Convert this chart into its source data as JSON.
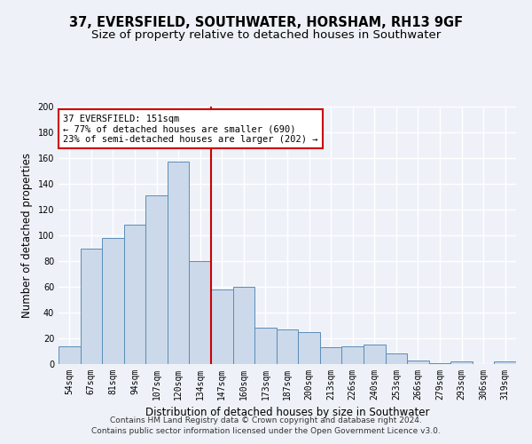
{
  "title": "37, EVERSFIELD, SOUTHWATER, HORSHAM, RH13 9GF",
  "subtitle": "Size of property relative to detached houses in Southwater",
  "xlabel": "Distribution of detached houses by size in Southwater",
  "ylabel": "Number of detached properties",
  "categories": [
    "54sqm",
    "67sqm",
    "81sqm",
    "94sqm",
    "107sqm",
    "120sqm",
    "134sqm",
    "147sqm",
    "160sqm",
    "173sqm",
    "187sqm",
    "200sqm",
    "213sqm",
    "226sqm",
    "240sqm",
    "253sqm",
    "266sqm",
    "279sqm",
    "293sqm",
    "306sqm",
    "319sqm"
  ],
  "values": [
    14,
    90,
    98,
    108,
    131,
    157,
    80,
    58,
    60,
    28,
    27,
    25,
    13,
    14,
    15,
    8,
    3,
    1,
    2,
    0,
    2
  ],
  "bar_color": "#ccd9ea",
  "bar_edge_color": "#5b8db8",
  "vline_x_index": 6.5,
  "vline_color": "#cc0000",
  "annotation_text": "37 EVERSFIELD: 151sqm\n← 77% of detached houses are smaller (690)\n23% of semi-detached houses are larger (202) →",
  "annotation_box_color": "#cc0000",
  "annotation_box_fill": "#ffffff",
  "ylim": [
    0,
    200
  ],
  "yticks": [
    0,
    20,
    40,
    60,
    80,
    100,
    120,
    140,
    160,
    180,
    200
  ],
  "footer1": "Contains HM Land Registry data © Crown copyright and database right 2024.",
  "footer2": "Contains public sector information licensed under the Open Government Licence v3.0.",
  "background_color": "#eef2f8",
  "grid_color": "#ffffff",
  "title_fontsize": 10.5,
  "subtitle_fontsize": 9.5,
  "axis_fontsize": 8.5,
  "tick_fontsize": 7,
  "footer_fontsize": 6.5,
  "annot_fontsize": 7.5
}
